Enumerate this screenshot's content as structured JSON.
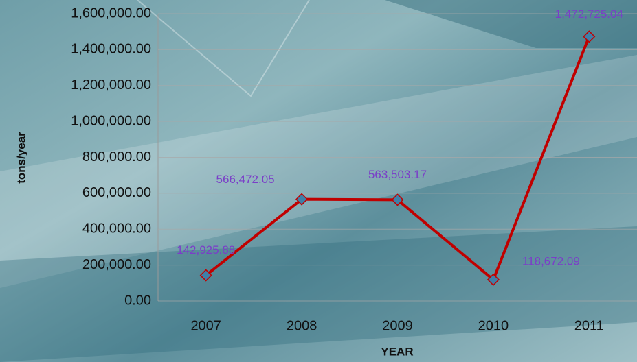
{
  "chart_data": {
    "type": "line",
    "x_label": "YEAR",
    "y_label": "tons/year",
    "categories": [
      "2007",
      "2008",
      "2009",
      "2010",
      "2011"
    ],
    "series": [
      {
        "name": "tons/year",
        "color": "#c00000",
        "marker_color": "#3f7fa8",
        "values": [
          142925.88,
          566472.05,
          563503.17,
          118672.09,
          1472725.04
        ],
        "value_labels": [
          "142,925.88",
          "566,472.05",
          "563,503.17",
          "118,672.09",
          "1,472,725.04"
        ]
      }
    ],
    "ylim": [
      0,
      1600000
    ],
    "yticks": [
      {
        "value": 0,
        "label": "0.00"
      },
      {
        "value": 200000,
        "label": "200,000.00"
      },
      {
        "value": 400000,
        "label": "400,000.00"
      },
      {
        "value": 600000,
        "label": "600,000.00"
      },
      {
        "value": 800000,
        "label": "800,000.00"
      },
      {
        "value": 1000000,
        "label": "1,000,000.00"
      },
      {
        "value": 1200000,
        "label": "1,200,000.00"
      },
      {
        "value": 1400000,
        "label": "1,400,000.00"
      },
      {
        "value": 1600000,
        "label": "1,600,000.00"
      }
    ],
    "grid": true
  }
}
